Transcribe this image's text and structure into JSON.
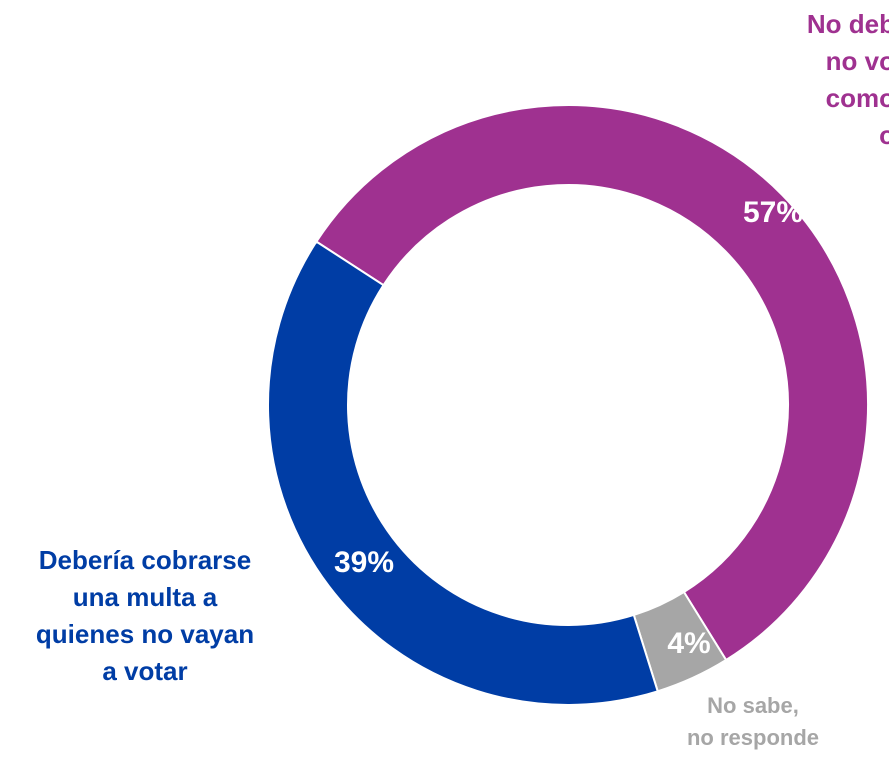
{
  "chart_data": {
    "type": "pie",
    "subtype": "donut",
    "title": "",
    "slices": [
      {
        "name": "No debería cobrarse multa a quienes no voten, ya que es un derecho como cualquier otro",
        "value": 57,
        "value_label": "57%",
        "color": "#9f3190"
      },
      {
        "name": "No sabe,\nno responde",
        "value": 4,
        "value_label": "4%",
        "color": "#a6a6a6"
      },
      {
        "name": "Debería cobrarse\nuna multa a\nquienes no vayan\na votar",
        "value": 39,
        "value_label": "39%",
        "color": "#003da5"
      }
    ]
  },
  "labels": {
    "no_multa": "No deb\nno vo\ncomo\no",
    "multa": "Debería cobrarse\nuna multa a\nquienes no vayan\na votar",
    "ns": "No sabe,\nno responde"
  }
}
